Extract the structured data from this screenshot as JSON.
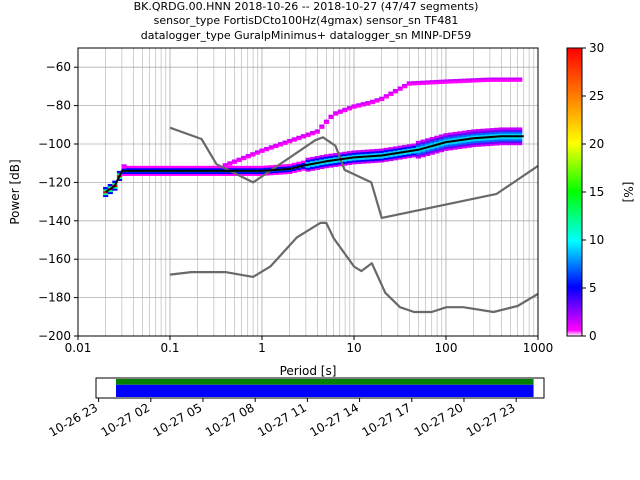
{
  "title": {
    "line1": "BK.QRDG.00.HNN   2018-10-26 -- 2018-10-27  (47/47 segments)",
    "line2": "sensor_type FortisDCto100Hz(4gmax) sensor_sn TF481",
    "line3": "datalogger_type GuralpMinimus+ datalogger_sn MINP-DF59"
  },
  "chart_data": [
    {
      "type": "heatmap",
      "xlabel": "Period [s]",
      "ylabel": "Power [dB]",
      "xscale": "log",
      "xlim": [
        0.01,
        1000
      ],
      "ylim": [
        -200,
        -50
      ],
      "grid": true,
      "x_ticks": [
        {
          "value": 0.01,
          "label": "0.01"
        },
        {
          "value": 0.1,
          "label": "0.1"
        },
        {
          "value": 1,
          "label": "1"
        },
        {
          "value": 10,
          "label": "10"
        },
        {
          "value": 100,
          "label": "100"
        },
        {
          "value": 1000,
          "label": "1000"
        }
      ],
      "y_ticks": [
        -60,
        -80,
        -100,
        -120,
        -140,
        -160,
        -180,
        -200
      ],
      "colorbar": {
        "label": "[%]",
        "range": [
          0,
          30
        ],
        "ticks": [
          0,
          5,
          10,
          15,
          20,
          25,
          30
        ],
        "colormap": [
          "#ffffff",
          "#ff00ff",
          "#0000ff",
          "#00ffff",
          "#00ff00",
          "#ffff00",
          "#ff0000"
        ]
      },
      "series": [
        {
          "name": "",
          "role": "mode / median curve",
          "color": "#000000",
          "x": [
            0.02,
            0.025,
            0.03,
            0.05,
            0.1,
            0.3,
            1,
            2,
            3,
            5,
            10,
            20,
            50,
            100,
            200,
            400,
            700
          ],
          "y": [
            -125,
            -122,
            -114,
            -114,
            -114,
            -114,
            -114,
            -113,
            -111,
            -109,
            -107,
            -106,
            -103,
            -99,
            -97,
            -96,
            -96
          ]
        },
        {
          "name": "",
          "role": "upper noise model",
          "color": "#696969",
          "x": [
            0.1,
            0.22,
            0.32,
            0.8,
            3.8,
            4.6,
            6.3,
            7.9,
            15.4,
            20,
            354.8,
            1000
          ],
          "y": [
            -91.5,
            -97.4,
            -110.5,
            -120,
            -98,
            -96.5,
            -101,
            -113.5,
            -120,
            -138.5,
            -126,
            -111.4
          ]
        },
        {
          "name": "",
          "role": "lower noise model",
          "color": "#696969",
          "x": [
            0.1,
            0.17,
            0.4,
            0.8,
            1.24,
            2.4,
            4.3,
            5,
            6,
            10,
            12,
            15.6,
            21.9,
            31.6,
            45,
            70,
            101,
            154,
            328,
            600,
            1000
          ],
          "y": [
            -168,
            -166.7,
            -166.7,
            -169.2,
            -163.7,
            -148.6,
            -141.1,
            -141.1,
            -149,
            -163.8,
            -166.2,
            -162.1,
            -177.5,
            -185,
            -187.5,
            -187.5,
            -185,
            -185,
            -187.5,
            -184.4,
            -178
          ]
        },
        {
          "name": "",
          "role": "high-percentile density band (magenta)",
          "color": "#cc00ff",
          "x": [
            0.02,
            0.03,
            0.05,
            0.1,
            0.3,
            1,
            2,
            4,
            6,
            10,
            15,
            20,
            40,
            100,
            300,
            700
          ],
          "y": [
            -122,
            -111,
            -113,
            -113,
            -113,
            -103,
            -98,
            -93,
            -84,
            -80,
            -78,
            -76,
            -68,
            -67,
            -66,
            -66
          ]
        }
      ]
    },
    {
      "type": "timeline",
      "x_ticks": [
        "10-26 23",
        "10-27 02",
        "10-27 05",
        "10-27 08",
        "10-27 11",
        "10-27 14",
        "10-27 17",
        "10-27 20",
        "10-27 23"
      ],
      "x_tick_hours": [
        23,
        26,
        29,
        32,
        35,
        38,
        41,
        44,
        47
      ],
      "xlim_hours": [
        22.85,
        48.6
      ],
      "bands": [
        {
          "role": "data availability",
          "color": "#008000",
          "start_hour": 24.0,
          "end_hour": 48.0
        },
        {
          "role": "segments used",
          "color": "#0000ff",
          "start_hour": 24.0,
          "end_hour": 48.0
        }
      ]
    }
  ]
}
